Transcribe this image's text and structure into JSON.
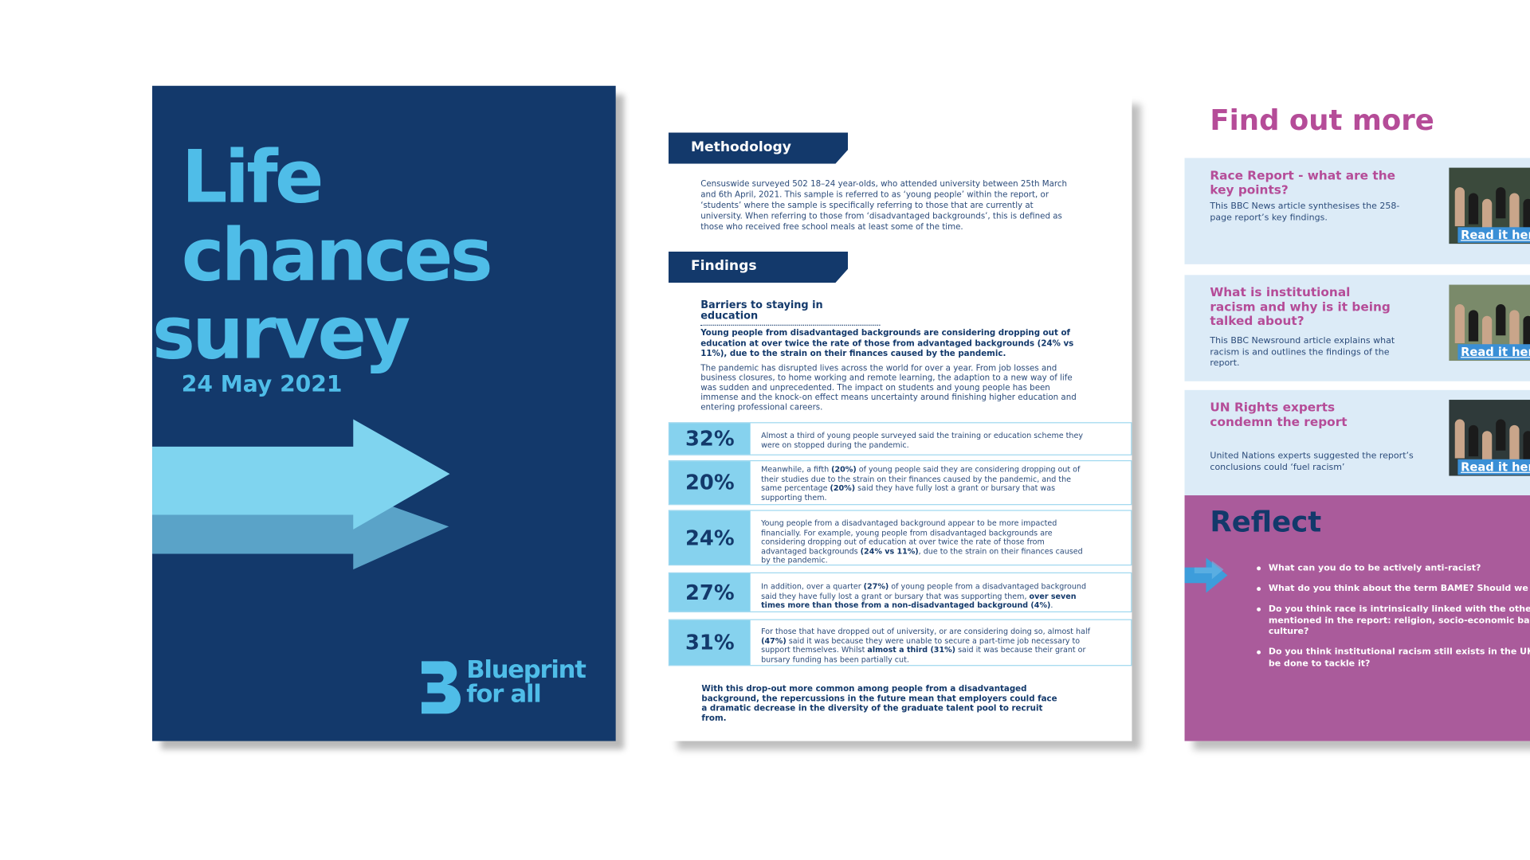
{
  "cover": {
    "title_lines": [
      "Life",
      "chances",
      "survey"
    ],
    "date": "24 May 2021",
    "logo": [
      "Blueprint",
      "for all"
    ]
  },
  "methodology": {
    "heading": "Methodology",
    "text": "Censuswide surveyed 502 18–24 year-olds, who attended university between 25th March and 6th April, 2021. This sample is referred to as ‘young people’ within the report, or ‘students’ where the sample is specifically referring to those that are currently at university. When referring to those from ‘disadvantaged backgrounds’, this is defined as those who received free school meals at least some of the time."
  },
  "findings": {
    "heading": "Findings",
    "subheading": "Barriers to staying in education",
    "lead": "Young people from disadvantaged backgrounds are considering dropping out of education at over twice the rate of those from advantaged backgrounds (24% vs 11%), due to the strain on their finances caused by the pandemic.",
    "text": "The pandemic has disrupted lives across the world for over a year. From job losses and business closures, to home working and remote learning, the adaption to a new way of life was sudden and unprecedented. The impact on students and young people has been immense and the knock-on effect means uncertainty around finishing higher education and entering professional careers.",
    "stats": [
      {
        "figure": "32%",
        "text": [
          "Almost a third of young people surveyed said the training or education scheme they were on stopped during the pandemic."
        ]
      },
      {
        "figure": "20%",
        "text": [
          "Meanwhile, a fifth ",
          "(20%)",
          " of young people said they are considering dropping out of their studies due to the strain on their finances caused by the pandemic, and the same percentage ",
          "(20%)",
          " said they have fully lost a grant or bursary that was supporting them."
        ]
      },
      {
        "figure": "24%",
        "text": [
          "Young people from a disadvantaged background appear to be more impacted financially. For example, young people from disadvantaged backgrounds are considering dropping out of education at over twice the rate of those from advantaged backgrounds ",
          "(24% vs 11%)",
          ", due to the strain on their finances caused by the pandemic."
        ]
      },
      {
        "figure": "27%",
        "text": [
          "In addition, over a quarter ",
          "(27%)",
          " of young people from a disadvantaged background said they have fully lost a grant or bursary that was supporting them, ",
          "over seven times more than those from a non-disadvantaged background (4%)",
          "."
        ]
      },
      {
        "figure": "31%",
        "text": [
          "For those that have dropped out of university, or are considering doing so, almost half ",
          "(47%)",
          " said it was because they were unable to secure a part-time job necessary to support themselves. Whilst ",
          "almost a third (31%)",
          " said it was because their grant or bursary funding has been partially cut."
        ]
      }
    ],
    "conclusion": "With this drop-out more common among people from a disadvantaged background, the repercussions in the future mean that employers could face a dramatic decrease in the diversity of the graduate talent pool to recruit from."
  },
  "find_out_more": {
    "title": "Find out more",
    "items": [
      {
        "title": "Race Report - what are the key points?",
        "description": "This BBC News article synthesises the 258-page report’s key findings.",
        "link": "Read it her"
      },
      {
        "title": "What is institutional racism and why is it being talked about?",
        "description": "This BBC Newsround article explains what racism is and outlines the findings of the report.",
        "link": "Read it here"
      },
      {
        "title": "UN Rights experts condemn the report",
        "description": "United Nations experts suggested the report’s conclusions could ‘fuel racism’",
        "link": "Read it her"
      }
    ]
  },
  "reflect": {
    "title": "Reflect",
    "questions": [
      "What can you do to be actively anti-racist?",
      "What do you think about the term BAME? Should we sto",
      "Do you think race is intrinsically linked with the other is\nmentioned in the report: religion, socio-economic back\nculture?",
      "Do you think institutional racism still exists in the UK? If\nbe done to tackle it?"
    ]
  }
}
